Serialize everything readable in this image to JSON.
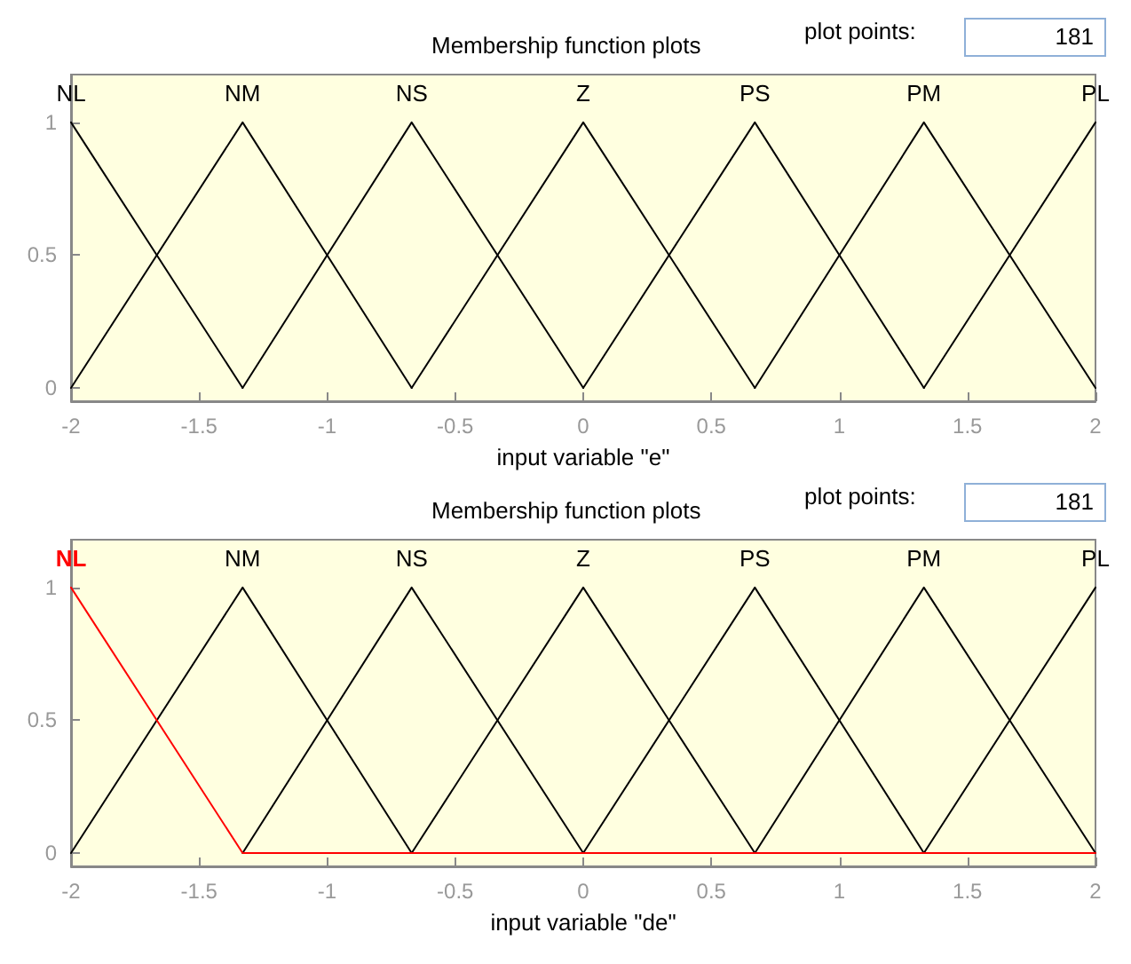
{
  "chart_data": [
    {
      "type": "line",
      "title": "Membership function plots",
      "xlabel": "input variable \"e\"",
      "annotations": [
        "plot points:",
        "181"
      ],
      "xlim": [
        -2,
        2
      ],
      "xticks": [
        -2,
        -1.5,
        -1,
        -0.5,
        0,
        0.5,
        1,
        1.5,
        2
      ],
      "ylim": [
        -0.05,
        1.18
      ],
      "yticks": [
        0,
        0.5,
        1
      ],
      "grid": false,
      "legend": false,
      "marker": "none",
      "line_style": "solid",
      "series": [
        {
          "name": "NL",
          "color": "#000000",
          "x": [
            -2,
            -1.33
          ],
          "values": [
            1,
            0
          ]
        },
        {
          "name": "NM",
          "color": "#000000",
          "x": [
            -2,
            -1.33,
            -0.67
          ],
          "values": [
            0,
            1,
            0
          ]
        },
        {
          "name": "NS",
          "color": "#000000",
          "x": [
            -1.33,
            -0.67,
            0
          ],
          "values": [
            0,
            1,
            0
          ]
        },
        {
          "name": "Z",
          "color": "#000000",
          "x": [
            -0.67,
            0,
            0.67
          ],
          "values": [
            0,
            1,
            0
          ]
        },
        {
          "name": "PS",
          "color": "#000000",
          "x": [
            0,
            0.67,
            1.33
          ],
          "values": [
            0,
            1,
            0
          ]
        },
        {
          "name": "PM",
          "color": "#000000",
          "x": [
            0.67,
            1.33,
            2
          ],
          "values": [
            0,
            1,
            0
          ]
        },
        {
          "name": "PL",
          "color": "#000000",
          "x": [
            1.33,
            2
          ],
          "values": [
            0,
            1
          ]
        }
      ]
    },
    {
      "type": "line",
      "title": "Membership function plots",
      "xlabel": "input variable \"de\"",
      "annotations": [
        "plot points:",
        "181"
      ],
      "xlim": [
        -2,
        2
      ],
      "xticks": [
        -2,
        -1.5,
        -1,
        -0.5,
        0,
        0.5,
        1,
        1.5,
        2
      ],
      "ylim": [
        -0.05,
        1.18
      ],
      "yticks": [
        0,
        0.5,
        1
      ],
      "grid": false,
      "legend": false,
      "marker": "none",
      "line_style": "solid",
      "series": [
        {
          "name": "NL",
          "color": "#ff0000",
          "x": [
            -2,
            -1.33,
            2
          ],
          "values": [
            1,
            0,
            0
          ]
        },
        {
          "name": "NM",
          "color": "#000000",
          "x": [
            -2,
            -1.33,
            -0.67
          ],
          "values": [
            0,
            1,
            0
          ]
        },
        {
          "name": "NS",
          "color": "#000000",
          "x": [
            -1.33,
            -0.67,
            0
          ],
          "values": [
            0,
            1,
            0
          ]
        },
        {
          "name": "Z",
          "color": "#000000",
          "x": [
            -0.67,
            0,
            0.67
          ],
          "values": [
            0,
            1,
            0
          ]
        },
        {
          "name": "PS",
          "color": "#000000",
          "x": [
            0,
            0.67,
            1.33
          ],
          "values": [
            0,
            1,
            0
          ]
        },
        {
          "name": "PM",
          "color": "#000000",
          "x": [
            0.67,
            1.33,
            2
          ],
          "values": [
            0,
            1,
            0
          ]
        },
        {
          "name": "PL",
          "color": "#000000",
          "x": [
            1.33,
            2
          ],
          "values": [
            0,
            1
          ]
        }
      ]
    }
  ]
}
